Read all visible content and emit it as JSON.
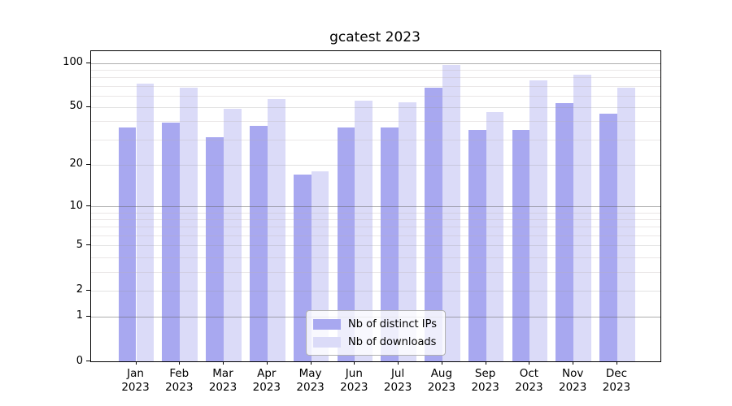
{
  "chart_data": {
    "type": "bar",
    "title": "gcatest 2023",
    "categories": [
      "Jan",
      "Feb",
      "Mar",
      "Apr",
      "May",
      "Jun",
      "Jul",
      "Aug",
      "Sep",
      "Oct",
      "Nov",
      "Dec"
    ],
    "year": "2023",
    "series": [
      {
        "name": "Nb of distinct IPs",
        "color": "#a8a8f0",
        "values": [
          36,
          39,
          31,
          37,
          17,
          36,
          36,
          68,
          35,
          35,
          53,
          45
        ]
      },
      {
        "name": "Nb of downloads",
        "color": "#dbdbf8",
        "values": [
          72,
          68,
          49,
          57,
          18,
          55,
          54,
          97,
          46,
          76,
          83,
          68
        ]
      }
    ],
    "yscale": "log1p",
    "yticks": [
      0,
      1,
      2,
      5,
      10,
      20,
      50,
      100
    ],
    "minor_yticks": [
      3,
      4,
      6,
      7,
      8,
      9,
      30,
      40,
      60,
      70,
      80,
      90
    ],
    "ylim": [
      0,
      110
    ],
    "xlabel": "",
    "ylabel": "",
    "grid": "horizontal",
    "legend_position": "bottom-center"
  },
  "colors": {
    "background": "#ffffff",
    "spine": "#000000",
    "grid_decade": "#b2b2b2",
    "grid_light": "#e3e3e3",
    "text": "#000000",
    "legend_border": "#b0b0b0"
  }
}
